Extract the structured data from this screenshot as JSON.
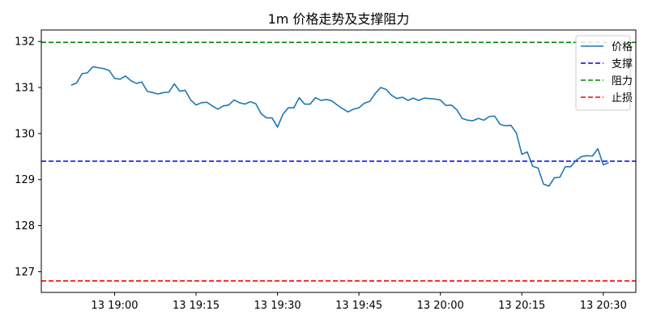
{
  "chart_data": {
    "type": "line",
    "title": "1m 价格走势及支撑阻力",
    "xlabel": "",
    "ylabel": "",
    "x_start": "19:00",
    "x_step_minutes": 1,
    "x_ticks": [
      "13 19:00",
      "13 19:15",
      "13 19:30",
      "13 19:45",
      "13 20:00",
      "13 20:15",
      "13 20:30"
    ],
    "x_tick_minutes": [
      0,
      15,
      30,
      45,
      60,
      75,
      90
    ],
    "xlim_minutes": [
      -13.5,
      96
    ],
    "y_ticks": [
      127,
      128,
      129,
      130,
      131,
      132
    ],
    "ylim": [
      126.55,
      132.25
    ],
    "grid": false,
    "legend_position": "top-right",
    "series": [
      {
        "name": "价格",
        "color": "#1f77b4",
        "style": "solid",
        "x_minutes": [
          -8,
          -7,
          -6,
          -5,
          -4,
          -3,
          -2,
          -1,
          0,
          1,
          2,
          3,
          4,
          5,
          6,
          7,
          8,
          9,
          10,
          11,
          12,
          13,
          14,
          15,
          16,
          17,
          18,
          19,
          20,
          21,
          22,
          23,
          24,
          25,
          26,
          27,
          28,
          29,
          30,
          31,
          32,
          33,
          34,
          35,
          36,
          37,
          38,
          39,
          40,
          41,
          42,
          43,
          44,
          45,
          46,
          47,
          48,
          49,
          50,
          51,
          52,
          53,
          54,
          55,
          56,
          57,
          58,
          59,
          60,
          61,
          62,
          63,
          64,
          65,
          66,
          67,
          68,
          69,
          70,
          71,
          72,
          73,
          74,
          75,
          76,
          77,
          78,
          79,
          80,
          81,
          82,
          83,
          84,
          85,
          86,
          87,
          88,
          89,
          90,
          91
        ],
        "values": [
          131.05,
          131.1,
          131.3,
          131.32,
          131.45,
          131.43,
          131.41,
          131.37,
          131.2,
          131.18,
          131.25,
          131.15,
          131.09,
          131.12,
          130.92,
          130.89,
          130.86,
          130.89,
          130.9,
          131.08,
          130.92,
          130.94,
          130.73,
          130.62,
          130.67,
          130.68,
          130.6,
          130.53,
          130.6,
          130.62,
          130.73,
          130.67,
          130.64,
          130.69,
          130.65,
          130.43,
          130.34,
          130.34,
          130.14,
          130.42,
          130.56,
          130.56,
          130.78,
          130.64,
          130.64,
          130.78,
          130.72,
          130.74,
          130.71,
          130.62,
          130.54,
          130.47,
          130.53,
          130.56,
          130.66,
          130.7,
          130.87,
          131.0,
          130.96,
          130.83,
          130.76,
          130.79,
          130.72,
          130.77,
          130.72,
          130.77,
          130.76,
          130.75,
          130.73,
          130.61,
          130.62,
          130.52,
          130.33,
          130.29,
          130.28,
          130.33,
          130.29,
          130.37,
          130.38,
          130.2,
          130.17,
          130.18,
          130.01,
          129.55,
          129.6,
          129.29,
          129.25,
          128.9,
          128.86,
          129.04,
          129.05,
          129.28,
          129.28,
          129.42,
          129.5,
          129.52,
          129.51,
          129.67,
          129.32,
          129.37
        ]
      },
      {
        "name": "支撑",
        "color": "#0000ff",
        "style": "dashed",
        "value": 129.4
      },
      {
        "name": "阻力",
        "color": "#008000",
        "style": "dashed",
        "value": 131.98
      },
      {
        "name": "止损",
        "color": "#ff0000",
        "style": "dashed",
        "value": 126.8
      }
    ]
  }
}
